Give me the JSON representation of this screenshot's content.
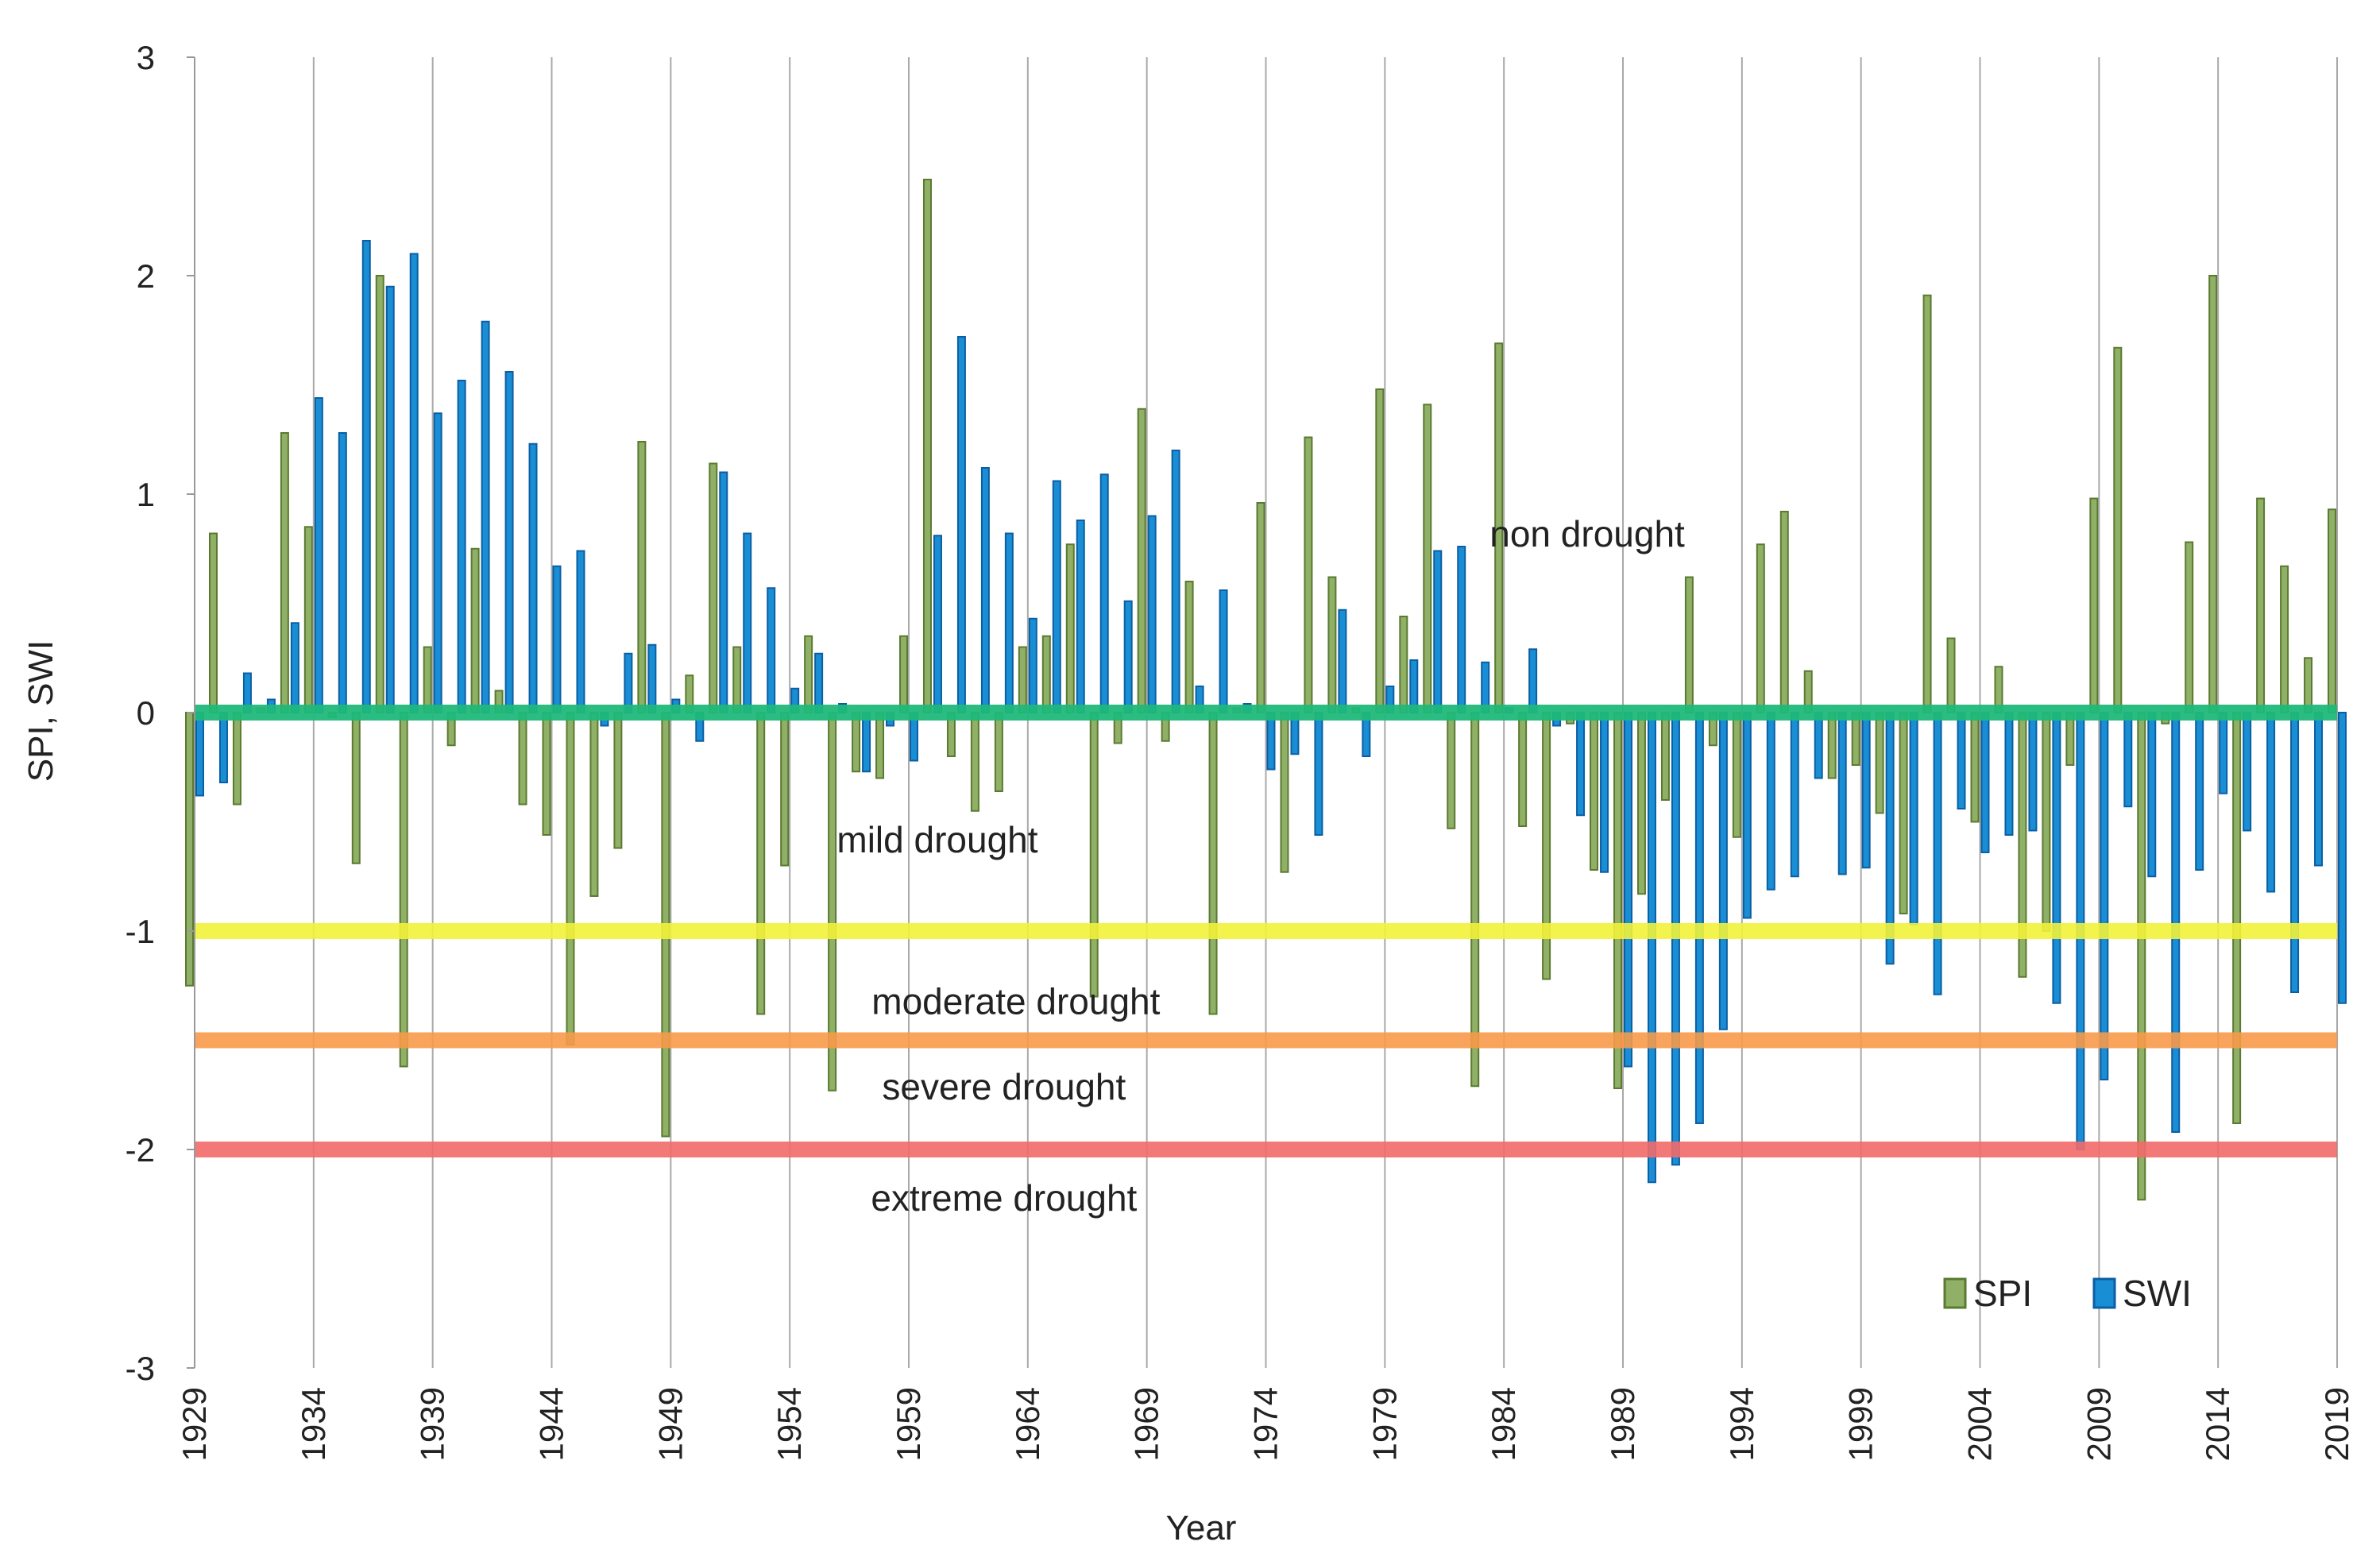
{
  "chart_data": {
    "type": "bar",
    "title": "",
    "xlabel": "Year",
    "ylabel": "SPI, SWI",
    "ylim": [
      -3,
      3
    ],
    "yticks": [
      3,
      2,
      1,
      0,
      -1,
      -2,
      -3
    ],
    "xtick_labels": [
      "1929",
      "1934",
      "1939",
      "1944",
      "1949",
      "1954",
      "1959",
      "1964",
      "1969",
      "1974",
      "1979",
      "1984",
      "1989",
      "1994",
      "1999",
      "2004",
      "2009",
      "2014",
      "2019"
    ],
    "grid": "vertical",
    "legend_position": "bottom-right",
    "years": [
      1929,
      1930,
      1931,
      1932,
      1933,
      1934,
      1935,
      1936,
      1937,
      1938,
      1939,
      1940,
      1941,
      1942,
      1943,
      1944,
      1945,
      1946,
      1947,
      1948,
      1949,
      1950,
      1951,
      1952,
      1953,
      1954,
      1955,
      1956,
      1957,
      1958,
      1959,
      1960,
      1961,
      1962,
      1963,
      1964,
      1965,
      1966,
      1967,
      1968,
      1969,
      1970,
      1971,
      1972,
      1973,
      1974,
      1975,
      1976,
      1977,
      1978,
      1979,
      1980,
      1981,
      1982,
      1983,
      1984,
      1985,
      1986,
      1987,
      1988,
      1989,
      1990,
      1991,
      1992,
      1993,
      1994,
      1995,
      1996,
      1997,
      1998,
      1999,
      2000,
      2001,
      2002,
      2003,
      2004,
      2005,
      2006,
      2007,
      2008,
      2009,
      2010,
      2011,
      2012,
      2013,
      2014,
      2015,
      2016,
      2017,
      2018,
      2019
    ],
    "series": [
      {
        "name": "SPI",
        "color": "#8fb066",
        "edge": "#5a7a30",
        "values": [
          -1.25,
          0.82,
          -0.42,
          0.02,
          1.28,
          0.85,
          -0.02,
          -0.69,
          2.0,
          -1.62,
          0.3,
          -0.15,
          0.75,
          0.1,
          -0.42,
          -0.56,
          -1.52,
          -0.84,
          -0.62,
          1.24,
          -1.94,
          0.17,
          1.14,
          0.3,
          -1.38,
          -0.7,
          0.35,
          -1.73,
          -0.27,
          -0.3,
          0.35,
          2.44,
          -0.2,
          -0.45,
          -0.36,
          0.3,
          0.35,
          0.77,
          -1.3,
          -0.14,
          1.39,
          -0.13,
          0.6,
          -1.38,
          0.02,
          0.96,
          -0.73,
          1.26,
          0.62,
          0.02,
          1.48,
          0.44,
          1.41,
          -0.53,
          -1.71,
          1.69,
          -0.52,
          -1.22,
          -0.05,
          -0.72,
          -1.72,
          -0.83,
          -0.4,
          0.62,
          -0.15,
          -0.57,
          0.77,
          0.92,
          0.19,
          -0.3,
          -0.24,
          -0.46,
          -0.92,
          1.91,
          0.34,
          -0.5,
          0.21,
          -1.21,
          -1.0,
          -0.24,
          0.98,
          1.67,
          -2.23,
          -0.05,
          0.78,
          2.0,
          -1.88,
          0.98,
          0.67,
          0.25,
          0.93
        ]
      },
      {
        "name": "SWI",
        "color": "#1a8ed4",
        "edge": "#0b5ea3",
        "values": [
          -0.38,
          -0.32,
          0.18,
          0.06,
          0.41,
          1.44,
          1.28,
          2.16,
          1.95,
          2.1,
          1.37,
          1.52,
          1.79,
          1.56,
          1.23,
          0.67,
          0.74,
          -0.06,
          0.27,
          0.31,
          0.06,
          -0.13,
          1.1,
          0.82,
          0.57,
          0.11,
          0.27,
          0.04,
          -0.27,
          -0.06,
          -0.22,
          0.81,
          1.72,
          1.12,
          0.82,
          0.43,
          1.06,
          0.88,
          1.09,
          0.51,
          0.9,
          1.2,
          0.12,
          0.56,
          0.04,
          -0.26,
          -0.19,
          -0.56,
          0.47,
          -0.2,
          0.12,
          0.24,
          0.74,
          0.76,
          0.23,
          0.02,
          0.29,
          -0.06,
          -0.47,
          -0.73,
          -1.62,
          -2.15,
          -2.07,
          -1.88,
          -1.45,
          -0.94,
          -0.81,
          -0.75,
          -0.3,
          -0.74,
          -0.71,
          -1.15,
          -0.97,
          -1.29,
          -0.44,
          -0.64,
          -0.56,
          -0.54,
          -1.33,
          -2.0,
          -1.68,
          -0.43,
          -0.75,
          -1.92,
          -0.72,
          -0.37,
          -0.54,
          -0.82,
          -1.28,
          -0.7,
          -1.33
        ]
      }
    ],
    "reference_lines": [
      {
        "value": 0,
        "color": "#1fb87a"
      },
      {
        "value": -1,
        "color": "#f2f23a"
      },
      {
        "value": -1.5,
        "color": "#f79a4a"
      },
      {
        "value": -2,
        "color": "#f26a6a"
      }
    ],
    "annotations": [
      {
        "text": "non drought",
        "x": 1987.5,
        "y": 0.76
      },
      {
        "text": "mild drought",
        "x": 1960.2,
        "y": -0.64
      },
      {
        "text": "moderate drought",
        "x": 1963.5,
        "y": -1.38
      },
      {
        "text": "severe drought",
        "x": 1963.0,
        "y": -1.77
      },
      {
        "text": "extreme drought",
        "x": 1963.0,
        "y": -2.28
      }
    ]
  }
}
